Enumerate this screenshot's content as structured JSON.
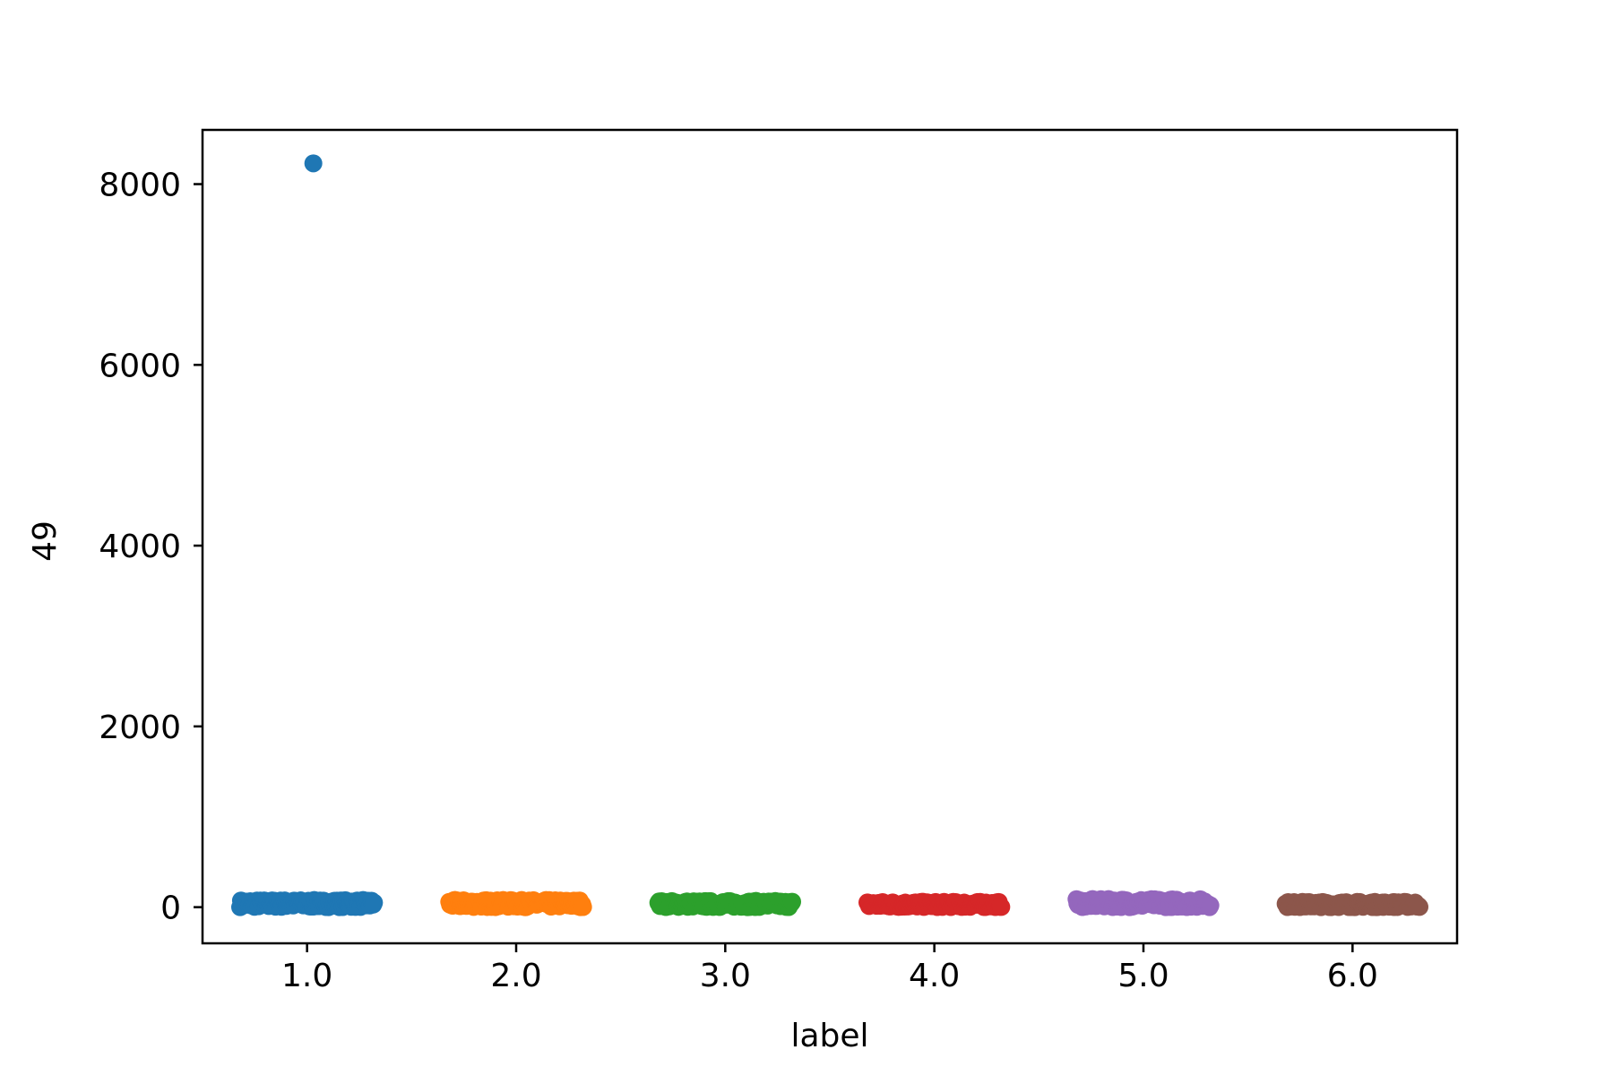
{
  "chart_data": {
    "type": "scatter",
    "title": "",
    "xlabel": "label",
    "ylabel": "49",
    "xlim": [
      0.5,
      6.5
    ],
    "ylim": [
      -400,
      8600
    ],
    "x_ticks": [
      1.0,
      2.0,
      3.0,
      4.0,
      5.0,
      6.0
    ],
    "x_tick_labels": [
      "1.0",
      "2.0",
      "3.0",
      "4.0",
      "5.0",
      "6.0"
    ],
    "y_ticks": [
      0,
      2000,
      4000,
      6000,
      8000
    ],
    "y_tick_labels": [
      "0",
      "2000",
      "4000",
      "6000",
      "8000"
    ],
    "grid": false,
    "legend": "none",
    "jitter_half_width": 0.32,
    "series": [
      {
        "category": 1.0,
        "color": "#1f77b4",
        "y_min": 0,
        "y_max": 80,
        "outliers": [
          {
            "x": 1.03,
            "y": 8230
          }
        ]
      },
      {
        "category": 2.0,
        "color": "#ff7f0e",
        "y_min": 0,
        "y_max": 80,
        "outliers": []
      },
      {
        "category": 3.0,
        "color": "#2ca02c",
        "y_min": 0,
        "y_max": 70,
        "outliers": []
      },
      {
        "category": 4.0,
        "color": "#d62728",
        "y_min": 0,
        "y_max": 60,
        "outliers": []
      },
      {
        "category": 5.0,
        "color": "#9467bd",
        "y_min": 0,
        "y_max": 90,
        "outliers": []
      },
      {
        "category": 6.0,
        "color": "#8c564b",
        "y_min": 0,
        "y_max": 60,
        "outliers": []
      }
    ]
  }
}
